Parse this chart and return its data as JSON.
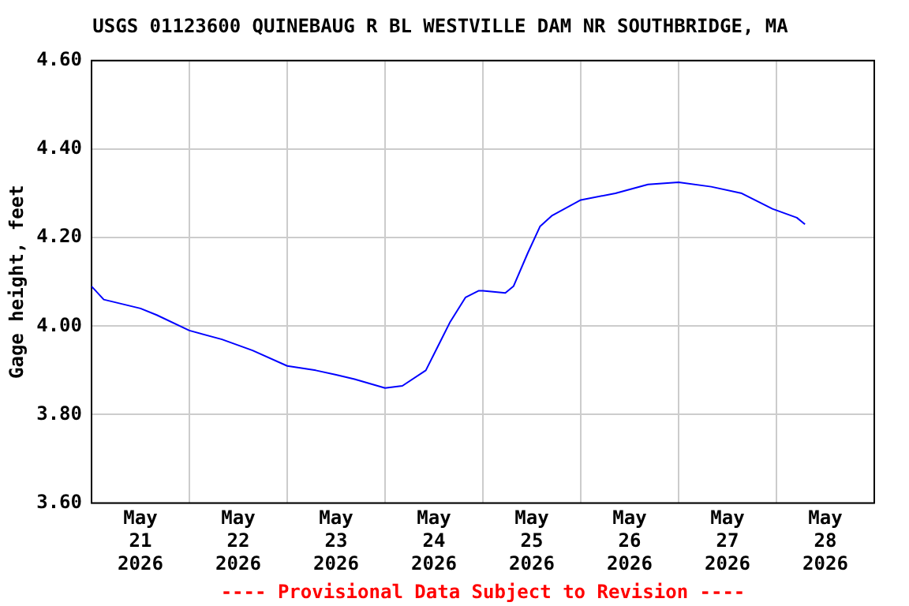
{
  "chart_data": {
    "type": "line",
    "title": "USGS 01123600 QUINEBAUG R BL WESTVILLE DAM NR SOUTHBRIDGE, MA",
    "ylabel": "Gage height, feet",
    "annotations": [
      "---- Provisional Data Subject to Revision ----"
    ],
    "x": [
      "2026-05-21T00:00",
      "2026-05-21T03:00",
      "2026-05-21T12:00",
      "2026-05-21T16:00",
      "2026-05-22T00:00",
      "2026-05-22T08:00",
      "2026-05-22T15:30",
      "2026-05-23T00:00",
      "2026-05-23T07:00",
      "2026-05-23T12:00",
      "2026-05-23T16:30",
      "2026-05-24T00:00",
      "2026-05-24T04:15",
      "2026-05-24T10:00",
      "2026-05-24T13:00",
      "2026-05-24T16:00",
      "2026-05-24T19:45",
      "2026-05-24T23:00",
      "2026-05-25T00:00",
      "2026-05-25T05:30",
      "2026-05-25T07:30",
      "2026-05-25T11:00",
      "2026-05-25T14:00",
      "2026-05-25T17:00",
      "2026-05-26T00:00",
      "2026-05-26T08:30",
      "2026-05-26T16:30",
      "2026-05-27T00:00",
      "2026-05-27T08:00",
      "2026-05-27T15:30",
      "2026-05-27T23:00",
      "2026-05-28T05:00",
      "2026-05-28T07:00"
    ],
    "series": [
      {
        "color": "#0000ff",
        "values": [
          4.09,
          4.06,
          4.04,
          4.025,
          3.99,
          3.97,
          3.945,
          3.91,
          3.9,
          3.89,
          3.88,
          3.86,
          3.865,
          3.9,
          3.955,
          4.01,
          4.065,
          4.08,
          4.08,
          4.075,
          4.09,
          4.165,
          4.225,
          4.25,
          4.285,
          4.3,
          4.32,
          4.325,
          4.315,
          4.3,
          4.265,
          4.245,
          4.23
        ]
      }
    ],
    "xlim": [
      "2026-05-21T00:00",
      "2026-05-29T00:00"
    ],
    "xticks": [
      {
        "value": "2026-05-21T12:00",
        "label": "May\n21\n2026"
      },
      {
        "value": "2026-05-22T12:00",
        "label": "May\n22\n2026"
      },
      {
        "value": "2026-05-23T12:00",
        "label": "May\n23\n2026"
      },
      {
        "value": "2026-05-24T12:00",
        "label": "May\n24\n2026"
      },
      {
        "value": "2026-05-25T12:00",
        "label": "May\n25\n2026"
      },
      {
        "value": "2026-05-26T12:00",
        "label": "May\n26\n2026"
      },
      {
        "value": "2026-05-27T12:00",
        "label": "May\n27\n2026"
      },
      {
        "value": "2026-05-28T12:00",
        "label": "May\n28\n2026"
      },
      {
        "value": "2026-05-22T00:00",
        "label": null
      },
      {
        "value": "2026-05-23T00:00",
        "label": null
      },
      {
        "value": "2026-05-24T00:00",
        "label": null
      },
      {
        "value": "2026-05-25T00:00",
        "label": null
      },
      {
        "value": "2026-05-26T00:00",
        "label": null
      },
      {
        "value": "2026-05-27T00:00",
        "label": null
      },
      {
        "value": "2026-05-28T00:00",
        "label": null
      }
    ],
    "ylim": [
      3.6,
      4.6
    ],
    "yticks": [
      {
        "value": 3.6,
        "label": "3.60"
      },
      {
        "value": 3.8,
        "label": "3.80"
      },
      {
        "value": 4.0,
        "label": "4.00"
      },
      {
        "value": 4.2,
        "label": "4.20"
      },
      {
        "value": 4.4,
        "label": "4.40"
      },
      {
        "value": 4.6,
        "label": "4.60"
      }
    ],
    "grid": true,
    "legend": false,
    "marker": "none",
    "line_style": "solid"
  }
}
